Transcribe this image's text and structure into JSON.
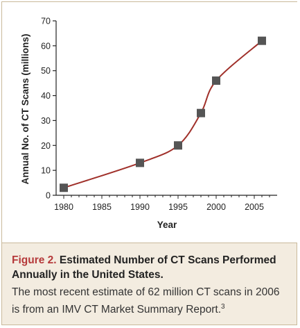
{
  "chart_data": {
    "type": "line",
    "title": "",
    "xlabel": "Year",
    "ylabel": "Annual No. of CT Scans (millions)",
    "xlim": [
      1979,
      2008
    ],
    "ylim": [
      0,
      70
    ],
    "xticks": [
      1980,
      1985,
      1990,
      1995,
      2000,
      2005
    ],
    "yticks": [
      0,
      10,
      20,
      30,
      40,
      50,
      60,
      70
    ],
    "grid": false,
    "series": [
      {
        "x": [
          1980,
          1990,
          1995,
          1998,
          2000,
          2006
        ],
        "y": [
          3,
          13,
          20,
          33,
          46,
          62
        ]
      }
    ],
    "colors": {
      "line": "#a0302a",
      "marker": "#555555"
    }
  },
  "caption": {
    "figure_label": "Figure 2.",
    "title": "Estimated Number of CT Scans Performed Annually in the United States.",
    "text": "The most recent estimate of 62 million CT scans in 2006 is from an IMV CT Market Summary Report.",
    "reference": "3"
  }
}
